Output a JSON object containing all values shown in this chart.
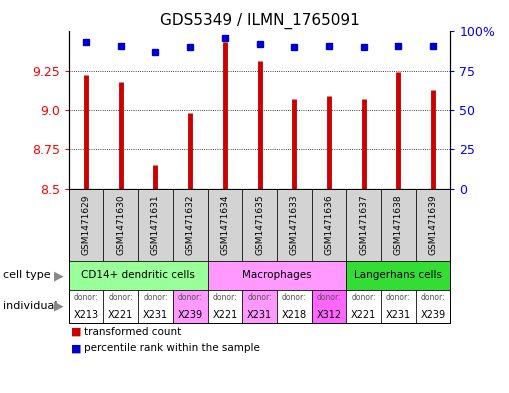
{
  "title": "GDS5349 / ILMN_1765091",
  "samples": [
    "GSM1471629",
    "GSM1471630",
    "GSM1471631",
    "GSM1471632",
    "GSM1471634",
    "GSM1471635",
    "GSM1471633",
    "GSM1471636",
    "GSM1471637",
    "GSM1471638",
    "GSM1471639"
  ],
  "transformed_counts": [
    9.22,
    9.18,
    8.65,
    8.98,
    9.43,
    9.31,
    9.07,
    9.09,
    9.07,
    9.24,
    9.13
  ],
  "percentile_ranks": [
    93,
    91,
    87,
    90,
    96,
    92,
    90,
    91,
    90,
    91,
    91
  ],
  "y_min": 8.5,
  "y_max": 9.5,
  "y_ticks": [
    8.5,
    8.75,
    9.0,
    9.25
  ],
  "y2_ticks": [
    0,
    25,
    50,
    75,
    100
  ],
  "bar_color": "#cc0000",
  "dot_color": "#0000cc",
  "cell_types": [
    {
      "label": "CD14+ dendritic cells",
      "start": 0,
      "end": 4,
      "color": "#99ff99"
    },
    {
      "label": "Macrophages",
      "start": 4,
      "end": 8,
      "color": "#ff99ff"
    },
    {
      "label": "Langerhans cells",
      "start": 8,
      "end": 11,
      "color": "#33dd33"
    }
  ],
  "individuals": [
    {
      "donor": "X213",
      "col": 0,
      "color": "#ffffff"
    },
    {
      "donor": "X221",
      "col": 1,
      "color": "#ffffff"
    },
    {
      "donor": "X231",
      "col": 2,
      "color": "#ffffff"
    },
    {
      "donor": "X239",
      "col": 3,
      "color": "#ff99ff"
    },
    {
      "donor": "X221",
      "col": 4,
      "color": "#ffffff"
    },
    {
      "donor": "X231",
      "col": 5,
      "color": "#ff99ff"
    },
    {
      "donor": "X218",
      "col": 6,
      "color": "#ffffff"
    },
    {
      "donor": "X312",
      "col": 7,
      "color": "#ff66ff"
    },
    {
      "donor": "X221",
      "col": 8,
      "color": "#ffffff"
    },
    {
      "donor": "X231",
      "col": 9,
      "color": "#ffffff"
    },
    {
      "donor": "X239",
      "col": 10,
      "color": "#ffffff"
    }
  ],
  "legend_items": [
    {
      "color": "#cc0000",
      "label": "transformed count"
    },
    {
      "color": "#0000cc",
      "label": "percentile rank within the sample"
    }
  ],
  "tick_fontsize": 9,
  "title_fontsize": 11,
  "sample_bg_color": "#d3d3d3",
  "bar_linewidth": 3.5
}
